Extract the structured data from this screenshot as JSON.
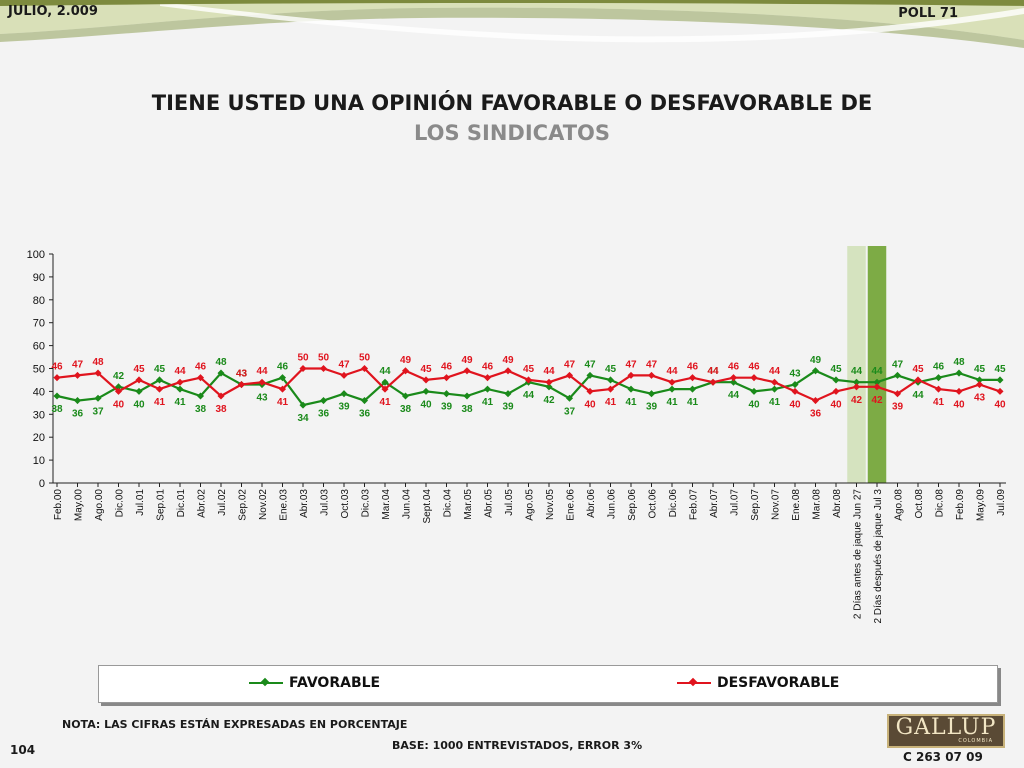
{
  "header": {
    "date": "JULIO, 2.009",
    "poll": "POLL 71"
  },
  "footer": {
    "note": "NOTA: LAS CIFRAS ESTÁN EXPRESADAS EN PORCENTAJE",
    "base": "BASE: 1000 ENTREVISTADOS, ERROR 3%",
    "page_number": "104",
    "logo_text": "GALLUP",
    "logo_sub": "COLOMBIA",
    "code": "C 263 07 09"
  },
  "colors": {
    "favorable": "#1a8a1a",
    "desfavorable": "#e0141e",
    "highlight_light": "#d5e3bf",
    "highlight_dark": "#7dab45"
  },
  "chart_data": {
    "type": "line",
    "title": "TIENE USTED UNA OPINIÓN FAVORABLE O DESFAVORABLE DE",
    "subtitle": "LOS SINDICATOS",
    "xlabel": "",
    "ylabel": "",
    "ylim": [
      0,
      100
    ],
    "yticks": [
      0,
      10,
      20,
      30,
      40,
      50,
      60,
      70,
      80,
      90,
      100
    ],
    "grid": false,
    "legend": "bottom",
    "highlight_categories": [
      "2 Días antes de jaque Jun 27",
      "2 Días después de jaque Jul 3"
    ],
    "categories": [
      "Feb.00",
      "May.00",
      "Ago.00",
      "Dic.00",
      "Jul.01",
      "Sep.01",
      "Dic.01",
      "Abr.02",
      "Jul.02",
      "Sep.02",
      "Nov.02",
      "Ene.03",
      "Abr.03",
      "Jul.03",
      "Oct.03",
      "Dic.03",
      "Mar.04",
      "Jun.04",
      "Sept.04",
      "Dic.04",
      "Mar.05",
      "Abr.05",
      "Jul.05",
      "Ago.05",
      "Nov.05",
      "Ene.06",
      "Abr.06",
      "Jun.06",
      "Sep.06",
      "Oct.06",
      "Dic.06",
      "Feb.07",
      "Abr.07",
      "Jul.07",
      "Sep.07",
      "Nov.07",
      "Ene.08",
      "Mar.08",
      "Abr.08",
      "2 Días antes de jaque Jun 27",
      "2 Días después de jaque Jul 3",
      "Ago.08",
      "Oct.08",
      "Dic.08",
      "Feb.09",
      "May.09",
      "Jul.09"
    ],
    "series": [
      {
        "name": "FAVORABLE",
        "values": [
          38,
          36,
          37,
          42,
          40,
          45,
          41,
          38,
          48,
          43,
          43,
          46,
          34,
          36,
          39,
          36,
          44,
          38,
          40,
          39,
          38,
          41,
          39,
          44,
          42,
          37,
          47,
          45,
          41,
          39,
          41,
          41,
          44,
          44,
          40,
          41,
          43,
          49,
          45,
          44,
          44,
          47,
          44,
          46,
          48,
          45,
          45
        ]
      },
      {
        "name": "DESFAVORABLE",
        "values": [
          46,
          47,
          48,
          40,
          45,
          41,
          44,
          46,
          38,
          43,
          44,
          41,
          50,
          50,
          47,
          50,
          41,
          49,
          45,
          46,
          49,
          46,
          49,
          45,
          44,
          47,
          40,
          41,
          47,
          47,
          44,
          46,
          44,
          46,
          46,
          44,
          40,
          36,
          40,
          42,
          42,
          39,
          45,
          41,
          40,
          43,
          40
        ]
      }
    ]
  }
}
